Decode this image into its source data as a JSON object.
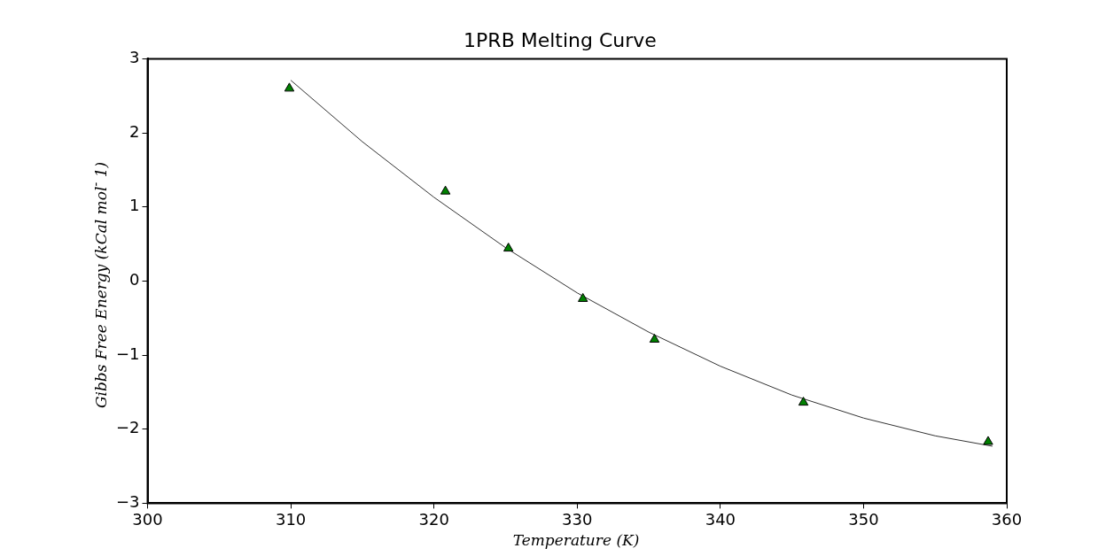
{
  "chart_data": {
    "type": "scatter",
    "title": "1PRB Melting Curve",
    "xlabel": "Temperature (K)",
    "ylabel": "Gibbs Free Energy (kCal mol$^{-}$ 1)",
    "xlim": [
      300,
      360
    ],
    "ylim": [
      -3,
      3
    ],
    "xticks": [
      300,
      310,
      320,
      330,
      340,
      350,
      360
    ],
    "yticks": [
      -3,
      -2,
      -1,
      0,
      1,
      2,
      3
    ],
    "series": [
      {
        "marker": "triangle",
        "color": "#008000",
        "x": [
          309.9,
          320.8,
          325.2,
          330.4,
          335.4,
          345.8,
          358.7
        ],
        "values": [
          2.6,
          1.21,
          0.44,
          -0.24,
          -0.79,
          -1.64,
          -2.17
        ]
      },
      {
        "type": "line",
        "marker": "none",
        "color": "#333333",
        "x": [
          310,
          315,
          320,
          325,
          330,
          335,
          340,
          345,
          350,
          355,
          359
        ],
        "values": [
          2.71,
          1.88,
          1.13,
          0.45,
          -0.16,
          -0.69,
          -1.15,
          -1.54,
          -1.85,
          -2.09,
          -2.23
        ]
      }
    ]
  }
}
